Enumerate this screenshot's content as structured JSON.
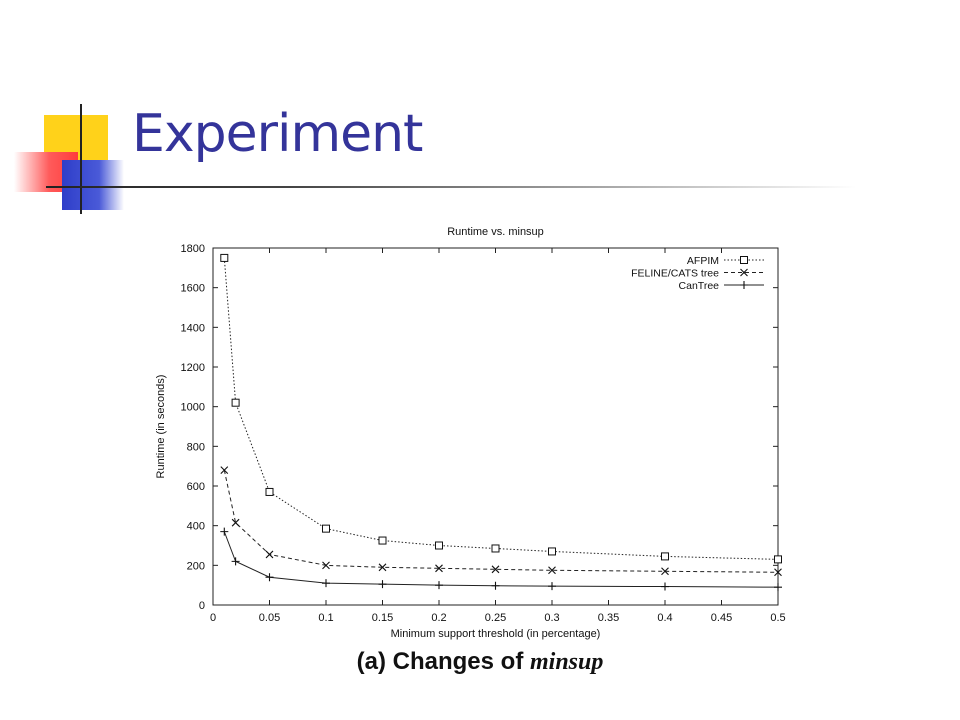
{
  "slide": {
    "title": "Experiment",
    "caption_prefix": "(a) Changes of ",
    "caption_emphasis": "minsup"
  },
  "chart_data": {
    "type": "line",
    "title": "Runtime vs. minsup",
    "xlabel": "Minimum support threshold (in percentage)",
    "ylabel": "Runtime (in seconds)",
    "xlim": [
      0,
      0.5
    ],
    "ylim": [
      0,
      1800
    ],
    "xticks": [
      "0",
      "0.05",
      "0.1",
      "0.15",
      "0.2",
      "0.25",
      "0.3",
      "0.35",
      "0.4",
      "0.45",
      "0.5"
    ],
    "yticks": [
      "0",
      "200",
      "400",
      "600",
      "800",
      "1000",
      "1200",
      "1400",
      "1600",
      "1800"
    ],
    "grid": false,
    "legend_position": "top-right",
    "series": [
      {
        "name": "AFPIM",
        "marker": "square",
        "dash": "dotted",
        "x": [
          0.01,
          0.02,
          0.05,
          0.1,
          0.15,
          0.2,
          0.25,
          0.3,
          0.4,
          0.5
        ],
        "values": [
          1750,
          1020,
          570,
          385,
          325,
          300,
          285,
          270,
          245,
          230
        ]
      },
      {
        "name": "FELINE/CATS tree",
        "marker": "x",
        "dash": "dashed",
        "x": [
          0.01,
          0.02,
          0.05,
          0.1,
          0.15,
          0.2,
          0.25,
          0.3,
          0.4,
          0.5
        ],
        "values": [
          680,
          415,
          255,
          200,
          190,
          185,
          180,
          175,
          170,
          165
        ]
      },
      {
        "name": "CanTree",
        "marker": "plus",
        "dash": "solid",
        "x": [
          0.01,
          0.02,
          0.05,
          0.1,
          0.15,
          0.2,
          0.25,
          0.3,
          0.4,
          0.5
        ],
        "values": [
          370,
          220,
          140,
          110,
          105,
          100,
          97,
          95,
          93,
          90
        ]
      }
    ]
  }
}
